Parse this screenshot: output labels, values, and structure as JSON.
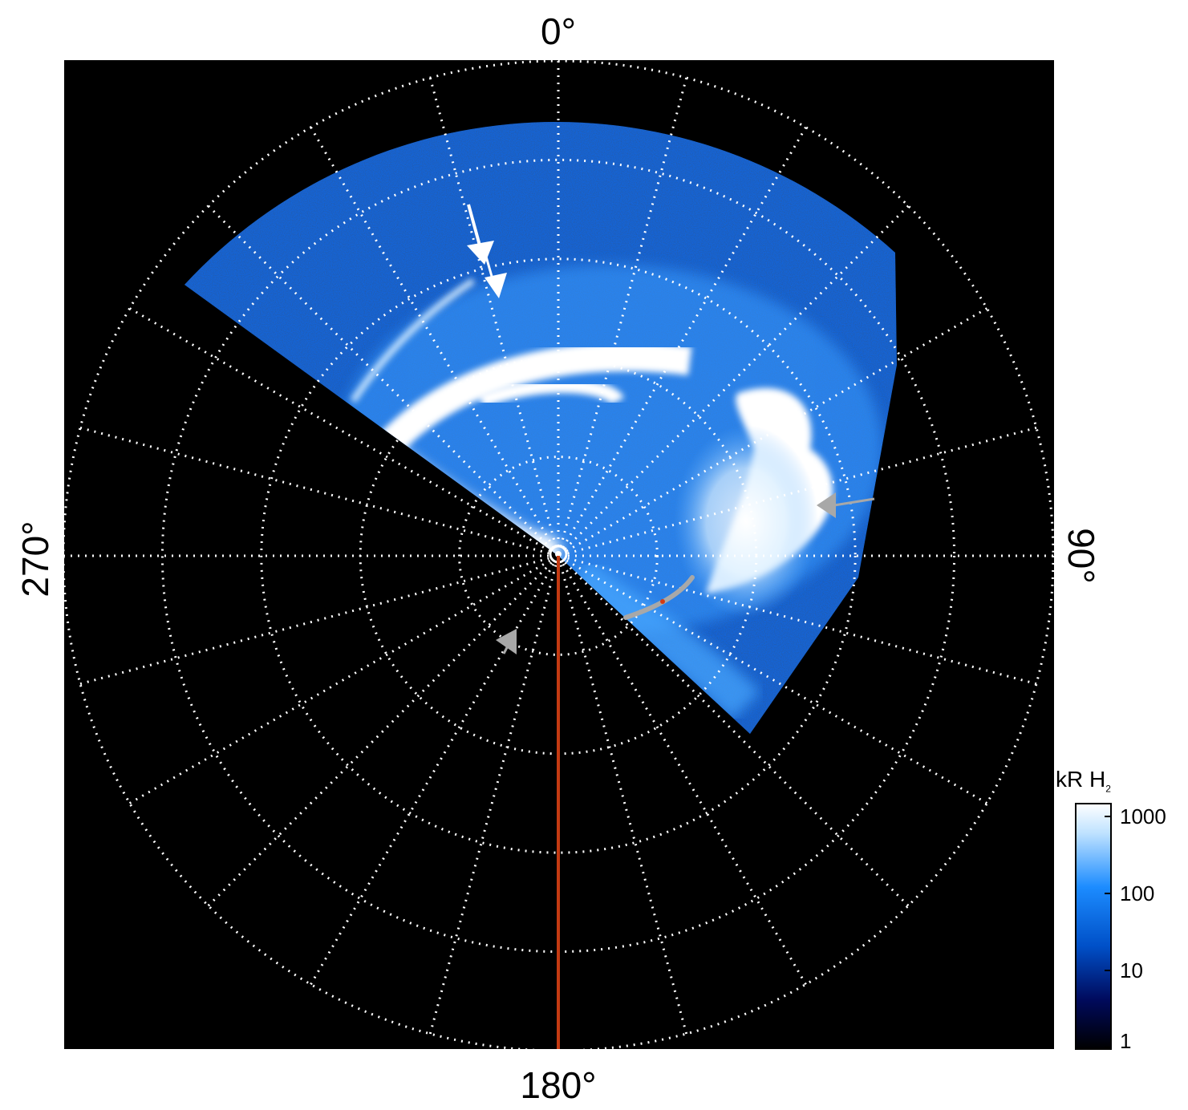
{
  "figure": {
    "axis_labels": {
      "top": "0°",
      "right": "90°",
      "bottom": "180°",
      "left": "270°"
    },
    "colorbar": {
      "title_main": "kR H",
      "title_sub": "2",
      "ticks": [
        "1000",
        "100",
        "10",
        "1"
      ],
      "colors": [
        "#000000",
        "#000a5c",
        "#0050c8",
        "#1c8cff",
        "#bfe2ff",
        "#ffffff"
      ]
    },
    "palette": {
      "background": "#000000",
      "grid": "#ffffff",
      "meridian_line": "#c43a12",
      "arrow_white": "#ffffff",
      "arrow_gray": "#a8a8a8"
    }
  }
}
